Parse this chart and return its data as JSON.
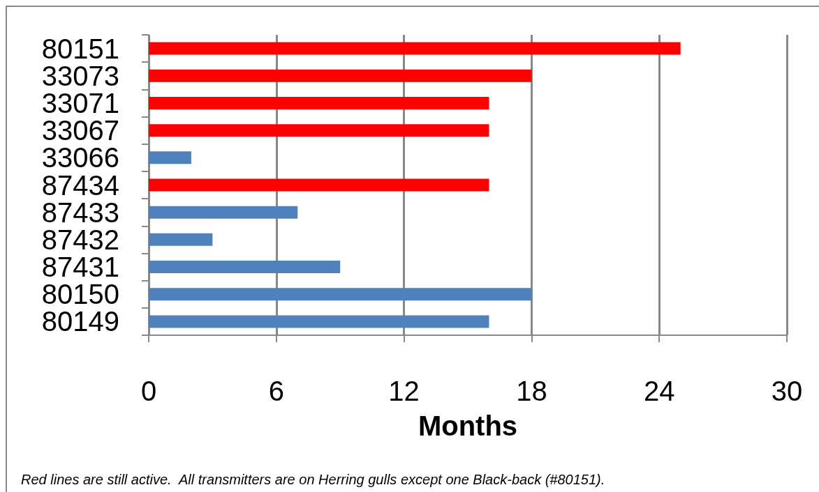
{
  "chart_data": {
    "type": "bar",
    "orientation": "horizontal",
    "categories": [
      "80151",
      "33073",
      "33071",
      "33067",
      "33066",
      "87434",
      "87433",
      "87432",
      "87431",
      "80150",
      "80149"
    ],
    "values": [
      25,
      18,
      16,
      16,
      2,
      16,
      7,
      3,
      9,
      18,
      16
    ],
    "colors": [
      "#ff0000",
      "#ff0000",
      "#ff0000",
      "#ff0000",
      "#4f81bd",
      "#ff0000",
      "#4f81bd",
      "#4f81bd",
      "#4f81bd",
      "#4f81bd",
      "#4f81bd"
    ],
    "xlim": [
      0,
      30
    ],
    "xticks": [
      0,
      6,
      12,
      18,
      24,
      30
    ],
    "xlabel": "Months",
    "grid": "x",
    "annotations": [
      "Red lines are still active.  All transmitters are on Herring gulls except one Black-back (#80151)."
    ]
  }
}
